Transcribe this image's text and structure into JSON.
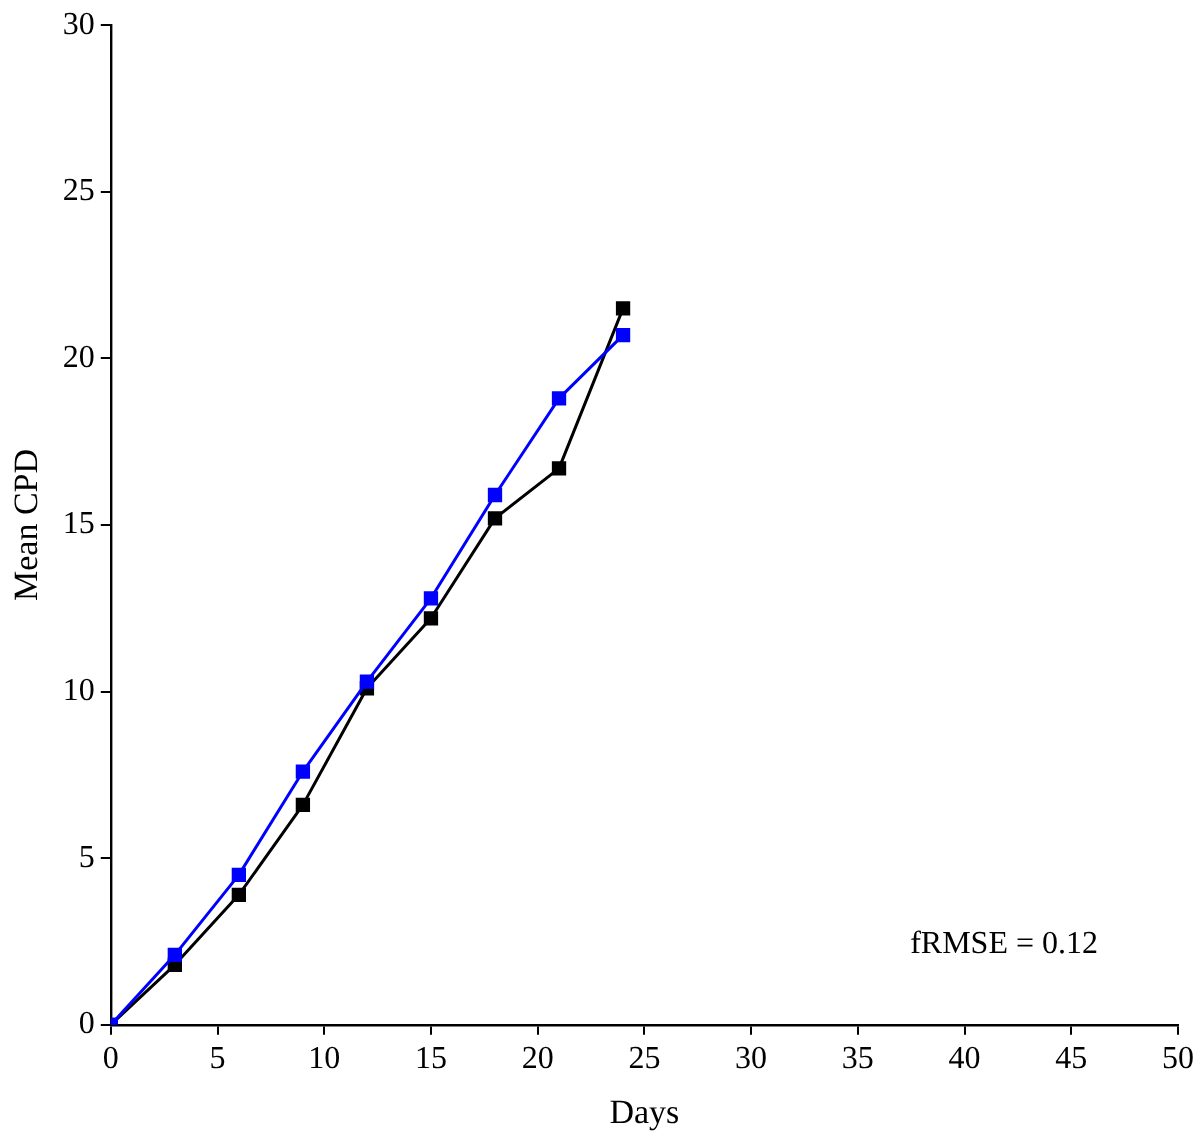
{
  "chart_data": {
    "type": "line",
    "xlabel": "Days",
    "ylabel": "Mean CPD",
    "xlim": [
      0,
      50
    ],
    "xticks": [
      0,
      5,
      10,
      15,
      20,
      25,
      30,
      35,
      40,
      45,
      50
    ],
    "ylim": [
      0,
      30
    ],
    "yticks": [
      0,
      5,
      10,
      15,
      20,
      25,
      30
    ],
    "grid": false,
    "legend": false,
    "marker": "square",
    "line_style": "solid",
    "annotations": [
      "fRMSE = 0.12"
    ],
    "series": [
      {
        "color": "#000000",
        "x": [
          0,
          3,
          6,
          9,
          12,
          15,
          18,
          21,
          24
        ],
        "values": [
          0,
          1.8,
          3.9,
          6.6,
          10.1,
          12.2,
          15.2,
          16.7,
          21.5
        ]
      },
      {
        "color": "#0000ff",
        "x": [
          0,
          3,
          6,
          9,
          12,
          15,
          18,
          21,
          24
        ],
        "values": [
          0,
          2.1,
          4.5,
          7.6,
          10.3,
          12.8,
          15.9,
          18.8,
          20.7
        ]
      }
    ]
  }
}
